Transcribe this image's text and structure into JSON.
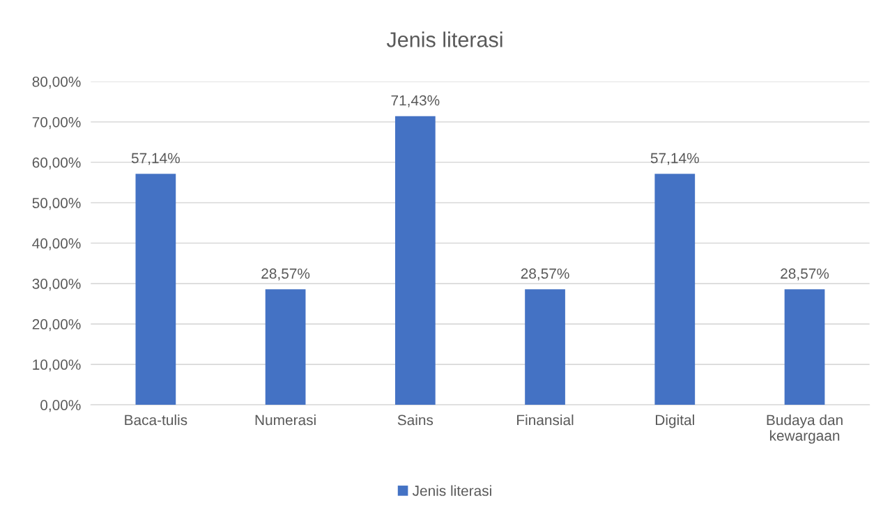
{
  "chart_data": {
    "type": "bar",
    "title": "Jenis literasi",
    "categories": [
      "Baca-tulis",
      "Numerasi",
      "Sains",
      "Finansial",
      "Digital",
      "Budaya dan\nkewargaan"
    ],
    "series": [
      {
        "name": "Jenis literasi",
        "color": "#4472c4",
        "values": [
          57.14,
          28.57,
          71.43,
          28.57,
          57.14,
          28.57
        ],
        "value_labels": [
          "57,14%",
          "28,57%",
          "71,43%",
          "28,57%",
          "57,14%",
          "28,57%"
        ]
      }
    ],
    "ylim": [
      0,
      80
    ],
    "yticks": [
      {
        "value": 0,
        "label": "0,00%"
      },
      {
        "value": 10,
        "label": "10,00%"
      },
      {
        "value": 20,
        "label": "20,00%"
      },
      {
        "value": 30,
        "label": "30,00%"
      },
      {
        "value": 40,
        "label": "40,00%"
      },
      {
        "value": 50,
        "label": "50,00%"
      },
      {
        "value": 60,
        "label": "60,00%"
      },
      {
        "value": 70,
        "label": "70,00%"
      },
      {
        "value": 80,
        "label": "80,00%"
      }
    ],
    "grid": "y",
    "legend": "bottom"
  }
}
